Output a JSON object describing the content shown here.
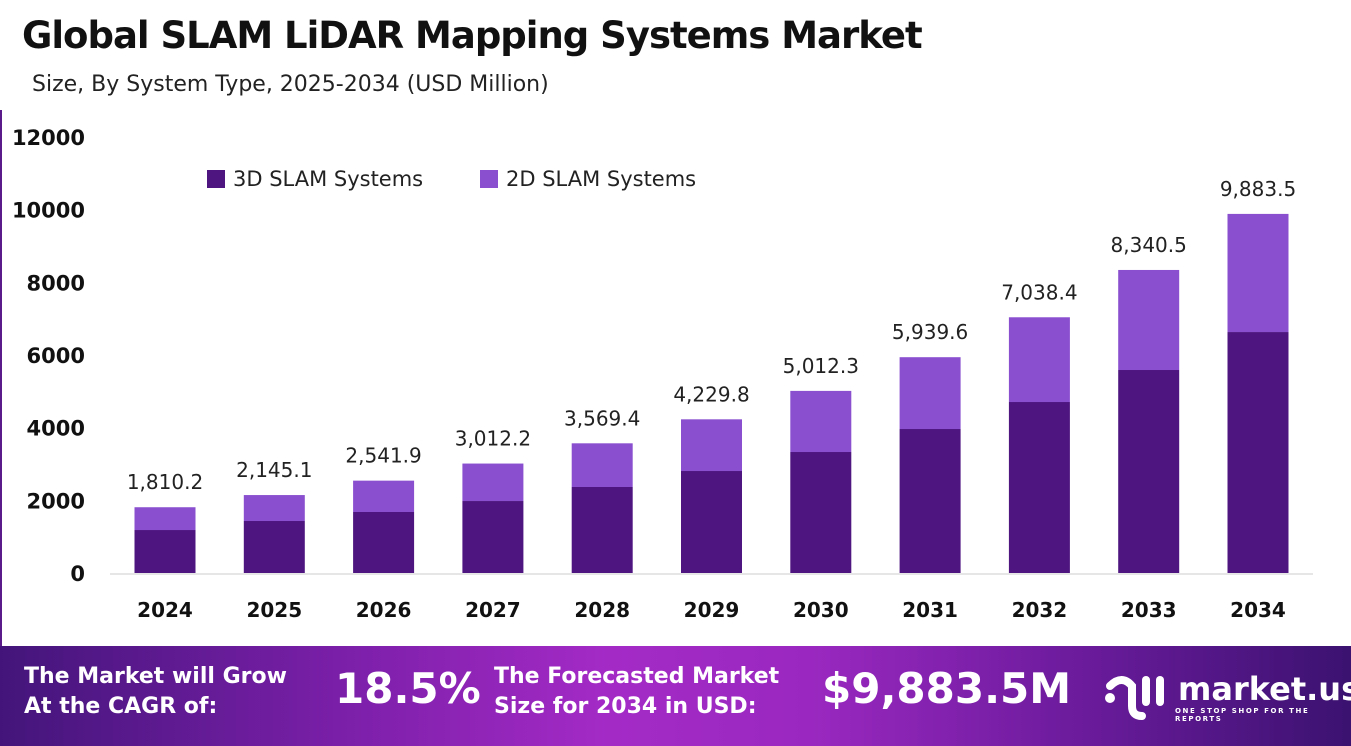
{
  "title": "Global SLAM LiDAR Mapping Systems Market",
  "subtitle": "Size, By System Type, 2025-2034 (USD Million)",
  "chart_data": {
    "type": "bar",
    "stacked": true,
    "categories": [
      "2024",
      "2025",
      "2026",
      "2027",
      "2028",
      "2029",
      "2030",
      "2031",
      "2032",
      "2033",
      "2034"
    ],
    "series": [
      {
        "name": "3D SLAM Systems",
        "color": "#4e1580",
        "values": [
          1183,
          1431,
          1679,
          1981,
          2367,
          2807,
          3330,
          3963,
          4706,
          5587,
          6632
        ]
      },
      {
        "name": "2D SLAM Systems",
        "color": "#8a4fcf",
        "values": [
          627.2,
          714.1,
          862.9,
          1031.2,
          1202.4,
          1422.8,
          1682.3,
          1976.6,
          2332.4,
          2753.5,
          3251.5
        ]
      }
    ],
    "totals_labels": [
      "1,810.2",
      "2,145.1",
      "2,541.9",
      "3,012.2",
      "3,569.4",
      "4,229.8",
      "5,012.3",
      "5,939.6",
      "7,038.4",
      "8,340.5",
      "9,883.5"
    ],
    "totals": [
      1810.2,
      2145.1,
      2541.9,
      3012.2,
      3569.4,
      4229.8,
      5012.3,
      5939.6,
      7038.4,
      8340.5,
      9883.5
    ],
    "yticks": [
      "0",
      "2000",
      "4000",
      "6000",
      "8000",
      "10000",
      "12000"
    ],
    "ylim": [
      0,
      12000
    ],
    "grid": false,
    "legend": "top-left"
  },
  "banner": {
    "cagr_text_1": "The Market will Grow",
    "cagr_text_2": "At the CAGR of:",
    "cagr_value": "18.5%",
    "forecast_text_1": "The Forecasted Market",
    "forecast_text_2": "Size for 2034 in USD:",
    "forecast_value": "$9,883.5M",
    "logo_name": "market.us",
    "logo_tagline": "ONE STOP SHOP FOR THE REPORTS"
  }
}
